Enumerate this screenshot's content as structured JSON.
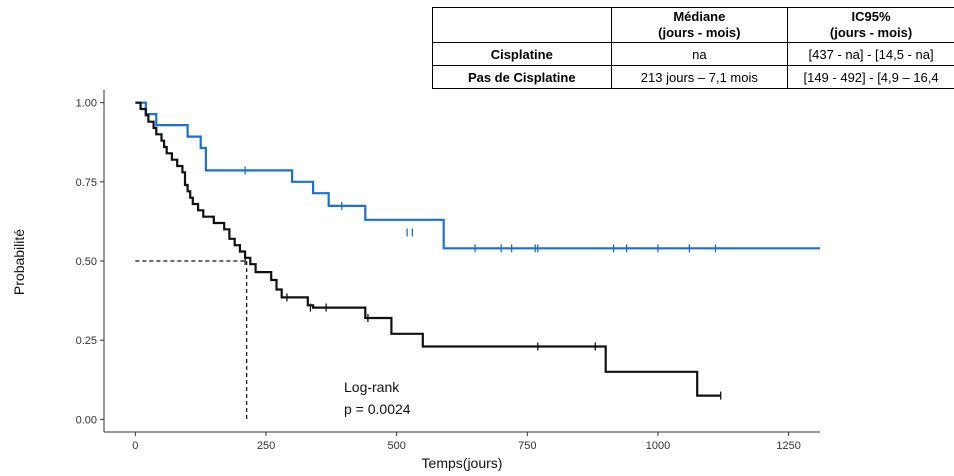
{
  "chart_data": {
    "type": "line",
    "subtype": "kaplan-meier",
    "xlabel": "Temps(jours)",
    "ylabel": "Probabilité",
    "xlim": [
      -60,
      1310
    ],
    "ylim": [
      -0.04,
      1.04
    ],
    "xticks": [
      0,
      250,
      500,
      750,
      1000,
      1250
    ],
    "yticks": [
      "0.00",
      "0.25",
      "0.50",
      "0.75",
      "1.00"
    ],
    "grid": false,
    "legend": "none",
    "series": [
      {
        "color": "#1f6fd1",
        "steps": [
          [
            0,
            1.0
          ],
          [
            20,
            0.964
          ],
          [
            40,
            0.929
          ],
          [
            100,
            0.893
          ],
          [
            125,
            0.857
          ],
          [
            135,
            0.786
          ],
          [
            300,
            0.75
          ],
          [
            340,
            0.714
          ],
          [
            370,
            0.674
          ],
          [
            440,
            0.63
          ],
          [
            590,
            0.54
          ],
          [
            1310,
            0.54
          ]
        ],
        "censored": [
          [
            210,
            0.786
          ],
          [
            395,
            0.674
          ],
          [
            520,
            0.59
          ],
          [
            530,
            0.59
          ],
          [
            650,
            0.54
          ],
          [
            700,
            0.54
          ],
          [
            720,
            0.54
          ],
          [
            765,
            0.54
          ],
          [
            770,
            0.54
          ],
          [
            915,
            0.54
          ],
          [
            940,
            0.54
          ],
          [
            1000,
            0.54
          ],
          [
            1060,
            0.54
          ],
          [
            1110,
            0.54
          ]
        ]
      },
      {
        "color": "#111111",
        "steps": [
          [
            0,
            1.0
          ],
          [
            10,
            0.98
          ],
          [
            20,
            0.96
          ],
          [
            25,
            0.94
          ],
          [
            35,
            0.92
          ],
          [
            40,
            0.9
          ],
          [
            50,
            0.88
          ],
          [
            55,
            0.86
          ],
          [
            60,
            0.84
          ],
          [
            70,
            0.82
          ],
          [
            80,
            0.8
          ],
          [
            90,
            0.78
          ],
          [
            95,
            0.74
          ],
          [
            100,
            0.72
          ],
          [
            105,
            0.7
          ],
          [
            110,
            0.68
          ],
          [
            120,
            0.66
          ],
          [
            130,
            0.64
          ],
          [
            150,
            0.62
          ],
          [
            170,
            0.6
          ],
          [
            180,
            0.57
          ],
          [
            190,
            0.55
          ],
          [
            200,
            0.53
          ],
          [
            210,
            0.51
          ],
          [
            220,
            0.49
          ],
          [
            230,
            0.465
          ],
          [
            260,
            0.44
          ],
          [
            270,
            0.41
          ],
          [
            280,
            0.385
          ],
          [
            330,
            0.36
          ],
          [
            340,
            0.353
          ],
          [
            440,
            0.32
          ],
          [
            490,
            0.27
          ],
          [
            550,
            0.23
          ],
          [
            900,
            0.15
          ],
          [
            1075,
            0.075
          ],
          [
            1120,
            0.075
          ]
        ],
        "censored": [
          [
            210,
            0.5
          ],
          [
            290,
            0.385
          ],
          [
            335,
            0.353
          ],
          [
            365,
            0.353
          ],
          [
            445,
            0.32
          ],
          [
            770,
            0.23
          ],
          [
            880,
            0.23
          ],
          [
            1120,
            0.075
          ]
        ]
      }
    ],
    "median_line": {
      "x": 213,
      "y": 0.5
    },
    "annotation": {
      "line1": "Log-rank",
      "line2": "p = 0.0024"
    }
  },
  "table": {
    "headers": [
      "",
      "Médiane\n(jours - mois)",
      "IC95%\n(jours - mois)"
    ],
    "rows": [
      [
        "Cisplatine",
        "na",
        "[437 - na] - [14,5 - na]"
      ],
      [
        "Pas de Cisplatine",
        "213 jours – 7,1 mois",
        "[149 - 492] - [4,9 – 16,4"
      ]
    ]
  }
}
